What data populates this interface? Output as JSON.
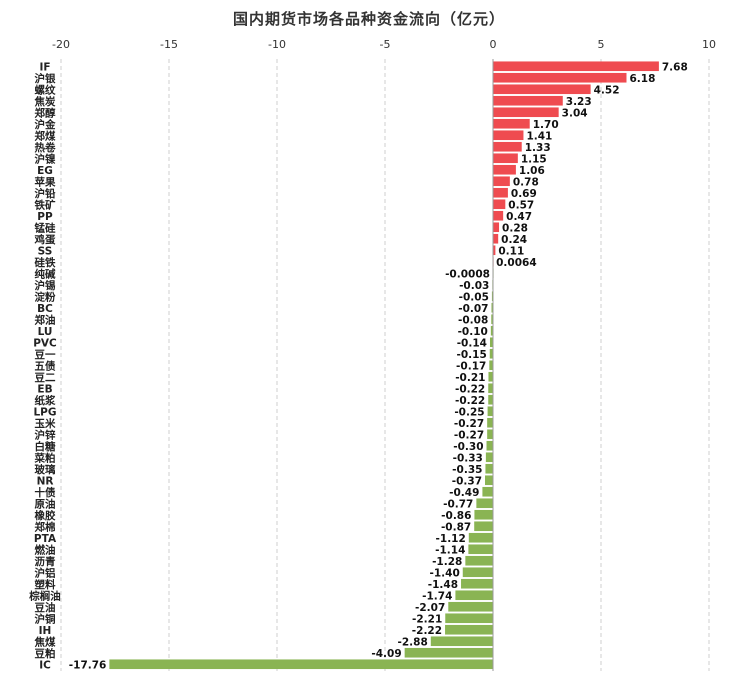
{
  "chart_data": {
    "type": "bar",
    "orientation": "horizontal",
    "title": "国内期货市场各品种资金流向（亿元）",
    "xlim": [
      -20,
      10
    ],
    "xticks": [
      -20,
      -15,
      -10,
      -5,
      0,
      5,
      10
    ],
    "grid": "vertical-dashed",
    "colors": {
      "positive": "#ef4b50",
      "negative": "#8ab453"
    },
    "categories": [
      "IF",
      "沪银",
      "螺纹",
      "焦炭",
      "郑醇",
      "沪金",
      "郑煤",
      "热卷",
      "沪镍",
      "EG",
      "苹果",
      "沪铅",
      "铁矿",
      "PP",
      "锰硅",
      "鸡蛋",
      "SS",
      "硅铁",
      "纯碱",
      "沪锡",
      "淀粉",
      "BC",
      "郑油",
      "LU",
      "PVC",
      "豆一",
      "五债",
      "豆二",
      "EB",
      "纸浆",
      "LPG",
      "玉米",
      "沪锌",
      "白糖",
      "菜粕",
      "玻璃",
      "NR",
      "十债",
      "原油",
      "橡胶",
      "郑棉",
      "PTA",
      "燃油",
      "沥青",
      "沪铝",
      "塑料",
      "棕榈油",
      "豆油",
      "沪铜",
      "IH",
      "焦煤",
      "豆粕",
      "IC"
    ],
    "values": [
      7.68,
      6.18,
      4.52,
      3.23,
      3.04,
      1.7,
      1.41,
      1.33,
      1.15,
      1.06,
      0.78,
      0.69,
      0.57,
      0.47,
      0.28,
      0.24,
      0.11,
      0.0064,
      -0.0008,
      -0.03,
      -0.05,
      -0.07,
      -0.08,
      -0.1,
      -0.14,
      -0.15,
      -0.17,
      -0.21,
      -0.22,
      -0.22,
      -0.25,
      -0.27,
      -0.27,
      -0.3,
      -0.33,
      -0.35,
      -0.37,
      -0.49,
      -0.77,
      -0.86,
      -0.87,
      -1.12,
      -1.14,
      -1.28,
      -1.4,
      -1.48,
      -1.74,
      -2.07,
      -2.21,
      -2.22,
      -2.88,
      -4.09,
      -17.76
    ],
    "labels": [
      "7.68",
      "6.18",
      "4.52",
      "3.23",
      "3.04",
      "1.70",
      "1.41",
      "1.33",
      "1.15",
      "1.06",
      "0.78",
      "0.69",
      "0.57",
      "0.47",
      "0.28",
      "0.24",
      "0.11",
      "0.0064",
      "-0.0008",
      "-0.03",
      "-0.05",
      "-0.07",
      "-0.08",
      "-0.10",
      "-0.14",
      "-0.15",
      "-0.17",
      "-0.21",
      "-0.22",
      "-0.22",
      "-0.25",
      "-0.27",
      "-0.27",
      "-0.30",
      "-0.33",
      "-0.35",
      "-0.37",
      "-0.49",
      "-0.77",
      "-0.86",
      "-0.87",
      "-1.12",
      "-1.14",
      "-1.28",
      "-1.40",
      "-1.48",
      "-1.74",
      "-2.07",
      "-2.21",
      "-2.22",
      "-2.88",
      "-4.09",
      "-17.76"
    ]
  }
}
